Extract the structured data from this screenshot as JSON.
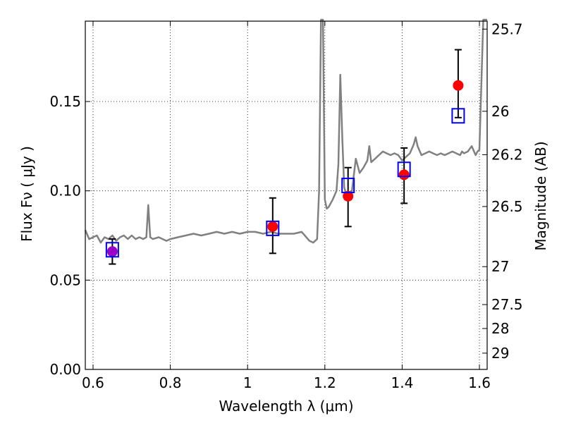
{
  "chart_data": {
    "type": "scatter",
    "title": "",
    "xlabel_text": "Wavelength  λ (μm)",
    "ylabel_text": "Flux  Fν  ( μJy )",
    "y2label": "Magnitude (AB)",
    "xlim": [
      0.58,
      1.62
    ],
    "ylim": [
      0.0,
      0.195
    ],
    "grid": true,
    "x_ticks": [
      {
        "value": 0.6,
        "label": "0.6"
      },
      {
        "value": 0.8,
        "label": "0.8"
      },
      {
        "value": 1.0,
        "label": "1"
      },
      {
        "value": 1.2,
        "label": "1.2"
      },
      {
        "value": 1.4,
        "label": "1.4"
      },
      {
        "value": 1.6,
        "label": "1.6"
      }
    ],
    "y_ticks": [
      {
        "value": 0.0,
        "label": "0.00"
      },
      {
        "value": 0.05,
        "label": "0.05"
      },
      {
        "value": 0.1,
        "label": "0.10"
      },
      {
        "value": 0.15,
        "label": "0.15"
      }
    ],
    "y2_ticks": [
      {
        "value": 25.7,
        "label": "25.7"
      },
      {
        "value": 26.0,
        "label": "26"
      },
      {
        "value": 26.2,
        "label": "26.2"
      },
      {
        "value": 26.5,
        "label": "26.5"
      },
      {
        "value": 27.0,
        "label": "27"
      },
      {
        "value": 27.5,
        "label": "27.5"
      },
      {
        "value": 28.0,
        "label": "28"
      },
      {
        "value": 29.0,
        "label": "29"
      }
    ],
    "colors": {
      "spectrum": "#808080",
      "observed": "#ff0000",
      "observed_first": "#9a00c8",
      "model_box": "#0000ff",
      "errorbar": "#000000"
    },
    "series": [
      {
        "kind": "model_spectrum",
        "x": [
          0.58,
          0.59,
          0.6,
          0.61,
          0.62,
          0.63,
          0.64,
          0.65,
          0.66,
          0.67,
          0.68,
          0.69,
          0.7,
          0.71,
          0.72,
          0.73,
          0.738,
          0.743,
          0.748,
          0.755,
          0.77,
          0.78,
          0.79,
          0.8,
          0.82,
          0.84,
          0.86,
          0.88,
          0.9,
          0.92,
          0.94,
          0.96,
          0.98,
          1.0,
          1.02,
          1.04,
          1.06,
          1.08,
          1.1,
          1.12,
          1.14,
          1.16,
          1.17,
          1.18,
          1.185,
          1.19,
          1.195,
          1.2,
          1.205,
          1.21,
          1.215,
          1.22,
          1.23,
          1.235,
          1.24,
          1.245,
          1.25,
          1.255,
          1.26,
          1.27,
          1.28,
          1.29,
          1.3,
          1.31,
          1.315,
          1.32,
          1.33,
          1.34,
          1.35,
          1.36,
          1.37,
          1.38,
          1.39,
          1.4,
          1.41,
          1.42,
          1.43,
          1.435,
          1.44,
          1.45,
          1.46,
          1.47,
          1.48,
          1.49,
          1.5,
          1.51,
          1.52,
          1.53,
          1.54,
          1.55,
          1.555,
          1.56,
          1.57,
          1.58,
          1.59,
          1.595,
          1.6,
          1.61,
          1.62
        ],
        "y": [
          0.078,
          0.073,
          0.074,
          0.075,
          0.071,
          0.074,
          0.073,
          0.075,
          0.072,
          0.074,
          0.075,
          0.073,
          0.075,
          0.073,
          0.074,
          0.073,
          0.074,
          0.092,
          0.074,
          0.073,
          0.074,
          0.073,
          0.072,
          0.073,
          0.074,
          0.075,
          0.076,
          0.075,
          0.076,
          0.077,
          0.076,
          0.077,
          0.076,
          0.077,
          0.077,
          0.076,
          0.077,
          0.076,
          0.076,
          0.076,
          0.077,
          0.072,
          0.071,
          0.073,
          0.1,
          0.2,
          0.2,
          0.095,
          0.09,
          0.091,
          0.093,
          0.095,
          0.1,
          0.115,
          0.165,
          0.13,
          0.102,
          0.098,
          0.098,
          0.1,
          0.118,
          0.11,
          0.113,
          0.117,
          0.125,
          0.116,
          0.118,
          0.12,
          0.122,
          0.121,
          0.12,
          0.121,
          0.12,
          0.117,
          0.119,
          0.121,
          0.126,
          0.13,
          0.125,
          0.12,
          0.121,
          0.122,
          0.121,
          0.12,
          0.121,
          0.12,
          0.121,
          0.122,
          0.121,
          0.12,
          0.122,
          0.121,
          0.122,
          0.125,
          0.12,
          0.122,
          0.123,
          0.2,
          0.2
        ]
      },
      {
        "kind": "observed_photometry",
        "x": [
          0.65,
          1.065,
          1.26,
          1.405,
          1.545
        ],
        "y": [
          0.066,
          0.08,
          0.097,
          0.109,
          0.159
        ],
        "yerr_low": [
          0.007,
          0.015,
          0.017,
          0.016,
          0.018
        ],
        "yerr_high": [
          0.007,
          0.016,
          0.016,
          0.015,
          0.02
        ]
      },
      {
        "kind": "model_photometry",
        "x": [
          0.65,
          1.065,
          1.26,
          1.405,
          1.545
        ],
        "y": [
          0.067,
          0.079,
          0.103,
          0.112,
          0.142
        ]
      }
    ]
  }
}
